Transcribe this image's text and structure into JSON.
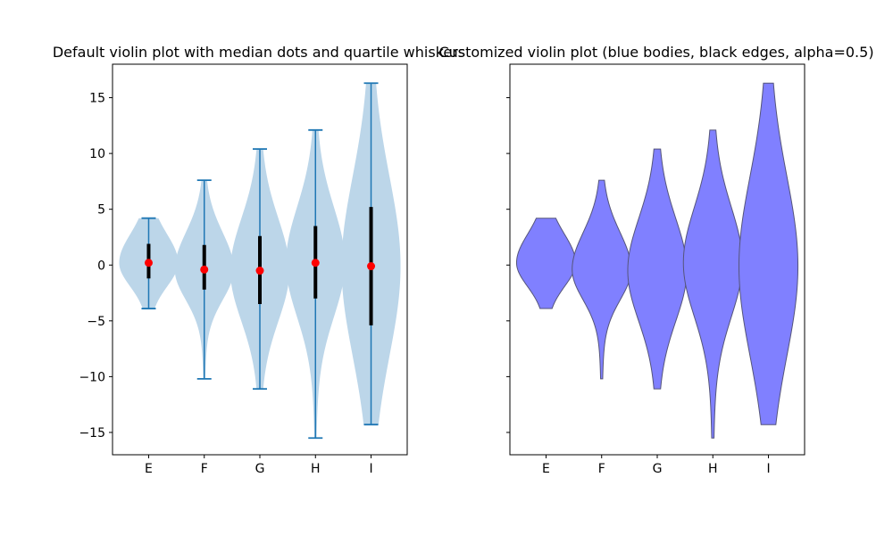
{
  "chart_data": [
    {
      "type": "violin",
      "title": "Default violin plot with median dots and quartile whiskers",
      "categories": [
        "E",
        "F",
        "G",
        "H",
        "I"
      ],
      "ylim": [
        -17,
        18
      ],
      "yticks": [
        -15,
        -10,
        -5,
        0,
        5,
        10,
        15
      ],
      "ytick_labels": [
        "−15",
        "−10",
        "−5",
        "0",
        "5",
        "10",
        "15"
      ],
      "violins": [
        {
          "name": "E",
          "min": -3.9,
          "max": 4.2,
          "q1": -1.2,
          "median": 0.2,
          "q3": 1.9
        },
        {
          "name": "F",
          "min": -10.2,
          "max": 7.6,
          "q1": -2.2,
          "median": -0.4,
          "q3": 1.8
        },
        {
          "name": "G",
          "min": -11.1,
          "max": 10.4,
          "q1": -3.5,
          "median": -0.5,
          "q3": 2.6
        },
        {
          "name": "H",
          "min": -15.5,
          "max": 12.1,
          "q1": -3.0,
          "median": 0.2,
          "q3": 3.5
        },
        {
          "name": "I",
          "min": -14.3,
          "max": 16.3,
          "q1": -5.4,
          "median": -0.1,
          "q3": 5.2
        }
      ],
      "style": {
        "body_color": "#bcd6e9",
        "line_color": "#1f77b4",
        "median_color": "#ff0000",
        "quartile_color": "#000000"
      },
      "grid": false
    },
    {
      "type": "violin",
      "title": "Customized violin plot (blue bodies, black edges, alpha=0.5)",
      "categories": [
        "E",
        "F",
        "G",
        "H",
        "I"
      ],
      "ylim": [
        -17,
        18
      ],
      "shared_y": true,
      "style": {
        "body_color": "#8080ff",
        "edge_color": "#55557a"
      },
      "grid": false
    }
  ]
}
